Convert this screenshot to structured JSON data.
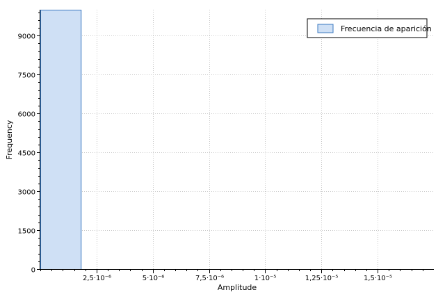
{
  "chart_data": {
    "type": "bar",
    "xlabel": "Amplitude",
    "ylabel": "Frequency",
    "legend_position": "top-right",
    "grid": true,
    "xlim": [
      0,
      1.75e-05
    ],
    "ylim": [
      0,
      10000
    ],
    "x_ticks": [
      {
        "value": 2.5e-06,
        "label": "2,5·10⁻⁶"
      },
      {
        "value": 5e-06,
        "label": "5·10⁻⁶"
      },
      {
        "value": 7.5e-06,
        "label": "7,5·10⁻⁶"
      },
      {
        "value": 1e-05,
        "label": "1·10⁻⁵"
      },
      {
        "value": 1.25e-05,
        "label": "1,25·10⁻⁵"
      },
      {
        "value": 1.5e-05,
        "label": "1,5·10⁻⁵"
      }
    ],
    "y_ticks": [
      {
        "value": 0,
        "label": "0"
      },
      {
        "value": 1500,
        "label": "1500"
      },
      {
        "value": 3000,
        "label": "3000"
      },
      {
        "value": 4500,
        "label": "4500"
      },
      {
        "value": 6000,
        "label": "6000"
      },
      {
        "value": 7500,
        "label": "7500"
      },
      {
        "value": 9000,
        "label": "9000"
      }
    ],
    "series": [
      {
        "name": "Frecuencia de aparición",
        "color": "#cfe0f5",
        "edge_color": "#3a78c0",
        "bars": [
          {
            "x_start": 0,
            "x_end": 1.8e-06,
            "value": 10000
          }
        ]
      }
    ]
  }
}
